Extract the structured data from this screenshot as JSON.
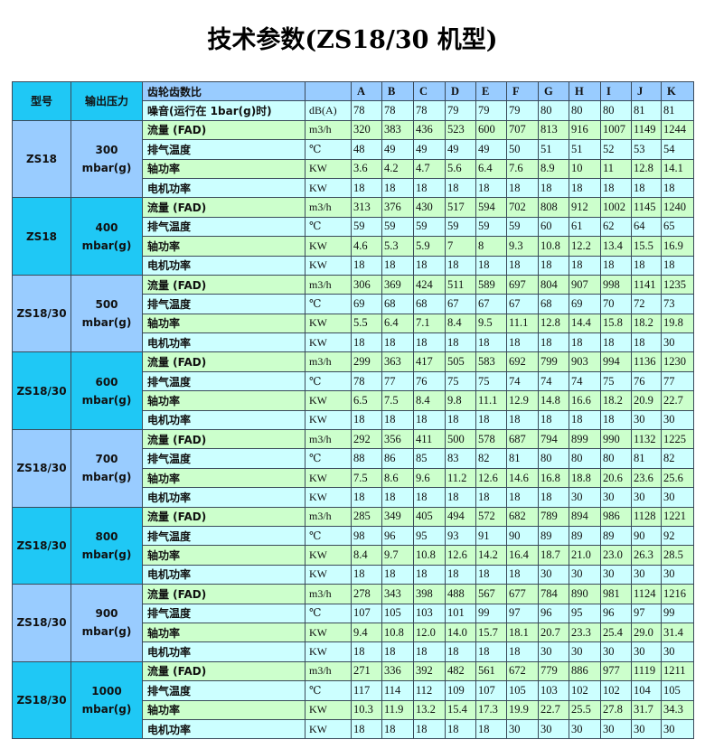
{
  "title": "技术参数(ZS18/30 机型)",
  "header": {
    "model_label": "型号",
    "pressure_label": "输出压力",
    "gear_ratio_label": "齿轮齿数比",
    "letters": [
      "A",
      "B",
      "C",
      "D",
      "E",
      "F",
      "G",
      "H",
      "I",
      "J",
      "K"
    ],
    "noise_label": "噪音(运行在 1bar(g)时)",
    "noise_unit": "dB(A)",
    "noise_values": [
      "78",
      "78",
      "78",
      "79",
      "79",
      "79",
      "80",
      "80",
      "80",
      "81",
      "81"
    ]
  },
  "row_labels": [
    "流量 (FAD)",
    "排气温度",
    "轴功率",
    "电机功率"
  ],
  "row_units": [
    "m3/h",
    "℃",
    "KW",
    "KW"
  ],
  "colors": {
    "cyan": "#1fc8f5",
    "light_blue": "#99ccff",
    "green": "#ccffcc",
    "light_cyan": "#ccffff"
  },
  "groups": [
    {
      "model": "ZS18",
      "pressure": "300",
      "pressure_unit": "mbar(g)",
      "rows": [
        [
          "320",
          "383",
          "436",
          "523",
          "600",
          "707",
          "813",
          "916",
          "1007",
          "1149",
          "1244"
        ],
        [
          "48",
          "49",
          "49",
          "49",
          "49",
          "50",
          "51",
          "51",
          "52",
          "53",
          "54"
        ],
        [
          "3.6",
          "4.2",
          "4.7",
          "5.6",
          "6.4",
          "7.6",
          "8.9",
          "10",
          "11",
          "12.8",
          "14.1"
        ],
        [
          "18",
          "18",
          "18",
          "18",
          "18",
          "18",
          "18",
          "18",
          "18",
          "18",
          "18"
        ]
      ]
    },
    {
      "model": "ZS18",
      "pressure": "400",
      "pressure_unit": "mbar(g)",
      "rows": [
        [
          "313",
          "376",
          "430",
          "517",
          "594",
          "702",
          "808",
          "912",
          "1002",
          "1145",
          "1240"
        ],
        [
          "59",
          "59",
          "59",
          "59",
          "59",
          "59",
          "60",
          "61",
          "62",
          "64",
          "65"
        ],
        [
          "4.6",
          "5.3",
          "5.9",
          "7",
          "8",
          "9.3",
          "10.8",
          "12.2",
          "13.4",
          "15.5",
          "16.9"
        ],
        [
          "18",
          "18",
          "18",
          "18",
          "18",
          "18",
          "18",
          "18",
          "18",
          "18",
          "18"
        ]
      ]
    },
    {
      "model": "ZS18/30",
      "pressure": "500",
      "pressure_unit": "mbar(g)",
      "rows": [
        [
          "306",
          "369",
          "424",
          "511",
          "589",
          "697",
          "804",
          "907",
          "998",
          "1141",
          "1235"
        ],
        [
          "69",
          "68",
          "68",
          "67",
          "67",
          "67",
          "68",
          "69",
          "70",
          "72",
          "73"
        ],
        [
          "5.5",
          "6.4",
          "7.1",
          "8.4",
          "9.5",
          "11.1",
          "12.8",
          "14.4",
          "15.8",
          "18.2",
          "19.8"
        ],
        [
          "18",
          "18",
          "18",
          "18",
          "18",
          "18",
          "18",
          "18",
          "18",
          "18",
          "30"
        ]
      ]
    },
    {
      "model": "ZS18/30",
      "pressure": "600",
      "pressure_unit": "mbar(g)",
      "rows": [
        [
          "299",
          "363",
          "417",
          "505",
          "583",
          "692",
          "799",
          "903",
          "994",
          "1136",
          "1230"
        ],
        [
          "78",
          "77",
          "76",
          "75",
          "75",
          "74",
          "74",
          "74",
          "75",
          "76",
          "77"
        ],
        [
          "6.5",
          "7.5",
          "8.4",
          "9.8",
          "11.1",
          "12.9",
          "14.8",
          "16.6",
          "18.2",
          "20.9",
          "22.7"
        ],
        [
          "18",
          "18",
          "18",
          "18",
          "18",
          "18",
          "18",
          "18",
          "18",
          "30",
          "30"
        ]
      ]
    },
    {
      "model": "ZS18/30",
      "pressure": "700",
      "pressure_unit": "mbar(g)",
      "rows": [
        [
          "292",
          "356",
          "411",
          "500",
          "578",
          "687",
          "794",
          "899",
          "990",
          "1132",
          "1225"
        ],
        [
          "88",
          "86",
          "85",
          "83",
          "82",
          "81",
          "80",
          "80",
          "80",
          "81",
          "82"
        ],
        [
          "7.5",
          "8.6",
          "9.6",
          "11.2",
          "12.6",
          "14.6",
          "16.8",
          "18.8",
          "20.6",
          "23.6",
          "25.6"
        ],
        [
          "18",
          "18",
          "18",
          "18",
          "18",
          "18",
          "18",
          "30",
          "30",
          "30",
          "30"
        ]
      ]
    },
    {
      "model": "ZS18/30",
      "pressure": "800",
      "pressure_unit": "mbar(g)",
      "rows": [
        [
          "285",
          "349",
          "405",
          "494",
          "572",
          "682",
          "789",
          "894",
          "986",
          "1128",
          "1221"
        ],
        [
          "98",
          "96",
          "95",
          "93",
          "91",
          "90",
          "89",
          "89",
          "89",
          "90",
          "92"
        ],
        [
          "8.4",
          "9.7",
          "10.8",
          "12.6",
          "14.2",
          "16.4",
          "18.7",
          "21.0",
          "23.0",
          "26.3",
          "28.5"
        ],
        [
          "18",
          "18",
          "18",
          "18",
          "18",
          "18",
          "30",
          "30",
          "30",
          "30",
          "30"
        ]
      ]
    },
    {
      "model": "ZS18/30",
      "pressure": "900",
      "pressure_unit": "mbar(g)",
      "rows": [
        [
          "278",
          "343",
          "398",
          "488",
          "567",
          "677",
          "784",
          "890",
          "981",
          "1124",
          "1216"
        ],
        [
          "107",
          "105",
          "103",
          "101",
          "99",
          "97",
          "96",
          "95",
          "96",
          "97",
          "99"
        ],
        [
          "9.4",
          "10.8",
          "12.0",
          "14.0",
          "15.7",
          "18.1",
          "20.7",
          "23.3",
          "25.4",
          "29.0",
          "31.4"
        ],
        [
          "18",
          "18",
          "18",
          "18",
          "18",
          "18",
          "30",
          "30",
          "30",
          "30",
          "30"
        ]
      ]
    },
    {
      "model": "ZS18/30",
      "pressure": "1000",
      "pressure_unit": "mbar(g)",
      "rows": [
        [
          "271",
          "336",
          "392",
          "482",
          "561",
          "672",
          "779",
          "886",
          "977",
          "1119",
          "1211"
        ],
        [
          "117",
          "114",
          "112",
          "109",
          "107",
          "105",
          "103",
          "102",
          "102",
          "104",
          "105"
        ],
        [
          "10.3",
          "11.9",
          "13.2",
          "15.4",
          "17.3",
          "19.9",
          "22.7",
          "25.5",
          "27.8",
          "31.7",
          "34.3"
        ],
        [
          "18",
          "18",
          "18",
          "18",
          "18",
          "30",
          "30",
          "30",
          "30",
          "30",
          "30"
        ]
      ]
    }
  ]
}
